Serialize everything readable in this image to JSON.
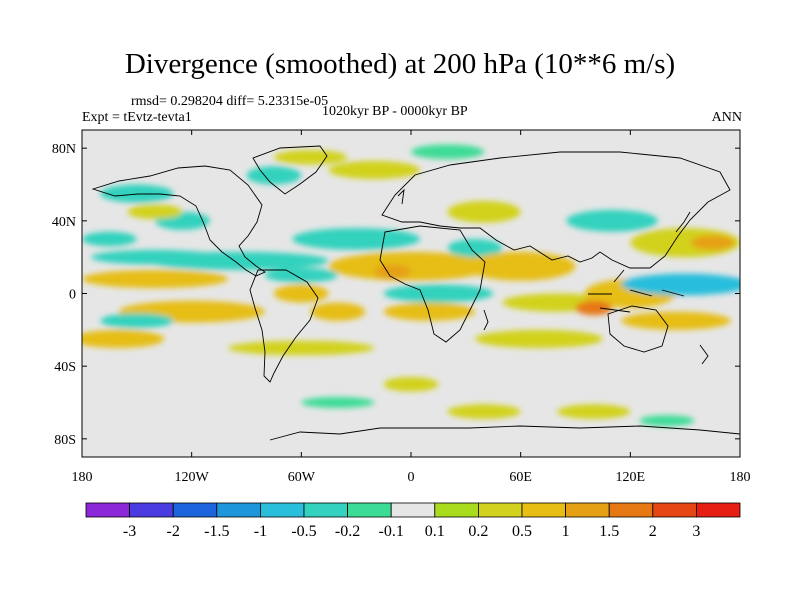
{
  "header": {
    "title": "Divergence (smoothed) at 200 hPa (10**6 m/s)",
    "rmsd_line": "rmsd= 0.298204  diff= 5.23315e-05",
    "experiment": "Expt = tEvtz-tevta1",
    "period": "1020kyr BP - 0000kyr BP",
    "season": "ANN"
  },
  "axes": {
    "lat_ticks": [
      {
        "value": 80,
        "label": "80N"
      },
      {
        "value": 40,
        "label": "40N"
      },
      {
        "value": 0,
        "label": "0"
      },
      {
        "value": -40,
        "label": "40S"
      },
      {
        "value": -80,
        "label": "80S"
      }
    ],
    "lon_ticks": [
      {
        "value": -180,
        "label": "180"
      },
      {
        "value": -120,
        "label": "120W"
      },
      {
        "value": -60,
        "label": "60W"
      },
      {
        "value": 0,
        "label": "0"
      },
      {
        "value": 60,
        "label": "60E"
      },
      {
        "value": 120,
        "label": "120E"
      },
      {
        "value": 180,
        "label": "180"
      }
    ],
    "lon_range": [
      -180,
      180
    ],
    "lat_range": [
      -90,
      90
    ]
  },
  "colorbar": {
    "colors": [
      "#8c28d8",
      "#4a3ce0",
      "#1e64dc",
      "#1e96dc",
      "#28bedc",
      "#32d2be",
      "#3cdc96",
      "#e6e6e6",
      "#aadc1e",
      "#d2d21e",
      "#e6be14",
      "#e6a014",
      "#e67814",
      "#e64614",
      "#e61e14"
    ],
    "labels": [
      "-3",
      "-2",
      "-1.5",
      "-1",
      "-0.5",
      "-0.2",
      "-0.1",
      "0.1",
      "0.2",
      "0.5",
      "1",
      "1.5",
      "2",
      "3"
    ]
  },
  "chart_data": {
    "type": "heatmap",
    "title": "Divergence (smoothed) at 200 hPa (10**6 m/s)",
    "units": "10**6 m/s",
    "xlabel": "",
    "ylabel": "",
    "xlim": [
      -180,
      180
    ],
    "ylim": [
      -90,
      90
    ],
    "levels": [
      -3,
      -2,
      -1.5,
      -1,
      -0.5,
      -0.2,
      -0.1,
      0.1,
      0.2,
      0.5,
      1,
      1.5,
      2,
      3
    ],
    "grid": false,
    "features": [
      {
        "lon": -140,
        "lat": 8,
        "rx": 40,
        "ry": 5,
        "value": 0.7
      },
      {
        "lon": -120,
        "lat": -10,
        "rx": 40,
        "ry": 6,
        "value": 0.6
      },
      {
        "lon": -160,
        "lat": -25,
        "rx": 25,
        "ry": 5,
        "value": 0.6
      },
      {
        "lon": -95,
        "lat": 18,
        "rx": 50,
        "ry": 5,
        "value": -0.5
      },
      {
        "lon": -140,
        "lat": 20,
        "rx": 35,
        "ry": 4,
        "value": -0.4
      },
      {
        "lon": -165,
        "lat": 30,
        "rx": 15,
        "ry": 4,
        "value": -0.3
      },
      {
        "lon": -125,
        "lat": 40,
        "rx": 15,
        "ry": 5,
        "value": -0.3
      },
      {
        "lon": -150,
        "lat": -15,
        "rx": 20,
        "ry": 4,
        "value": -0.3
      },
      {
        "lon": -60,
        "lat": 0,
        "rx": 15,
        "ry": 5,
        "value": 0.8
      },
      {
        "lon": -40,
        "lat": -10,
        "rx": 15,
        "ry": 5,
        "value": 0.5
      },
      {
        "lon": -60,
        "lat": -30,
        "rx": 40,
        "ry": 4,
        "value": 0.4
      },
      {
        "lon": -30,
        "lat": 30,
        "rx": 35,
        "ry": 6,
        "value": -0.4
      },
      {
        "lon": -60,
        "lat": 10,
        "rx": 20,
        "ry": 4,
        "value": -0.3
      },
      {
        "lon": 0,
        "lat": 15,
        "rx": 45,
        "ry": 8,
        "value": 0.6
      },
      {
        "lon": -10,
        "lat": 12,
        "rx": 10,
        "ry": 4,
        "value": 1.2
      },
      {
        "lon": 15,
        "lat": 0,
        "rx": 30,
        "ry": 5,
        "value": -0.4
      },
      {
        "lon": 10,
        "lat": -10,
        "rx": 25,
        "ry": 5,
        "value": 0.5
      },
      {
        "lon": 35,
        "lat": 25,
        "rx": 15,
        "ry": 5,
        "value": -0.3
      },
      {
        "lon": 60,
        "lat": 15,
        "rx": 30,
        "ry": 8,
        "value": 0.5
      },
      {
        "lon": 80,
        "lat": -5,
        "rx": 30,
        "ry": 5,
        "value": 0.4
      },
      {
        "lon": 70,
        "lat": -25,
        "rx": 35,
        "ry": 5,
        "value": 0.3
      },
      {
        "lon": 120,
        "lat": 0,
        "rx": 25,
        "ry": 8,
        "value": 0.9
      },
      {
        "lon": 100,
        "lat": -8,
        "rx": 10,
        "ry": 4,
        "value": 1.5
      },
      {
        "lon": 150,
        "lat": 5,
        "rx": 35,
        "ry": 6,
        "value": -0.6
      },
      {
        "lon": 145,
        "lat": -15,
        "rx": 30,
        "ry": 5,
        "value": 0.6
      },
      {
        "lon": 150,
        "lat": 28,
        "rx": 30,
        "ry": 8,
        "value": 0.4
      },
      {
        "lon": 165,
        "lat": 28,
        "rx": 12,
        "ry": 4,
        "value": 1.0
      },
      {
        "lon": 110,
        "lat": 40,
        "rx": 25,
        "ry": 6,
        "value": -0.3
      },
      {
        "lon": 40,
        "lat": 45,
        "rx": 20,
        "ry": 6,
        "value": 0.3
      },
      {
        "lon": -20,
        "lat": 68,
        "rx": 25,
        "ry": 5,
        "value": 0.3
      },
      {
        "lon": -55,
        "lat": 75,
        "rx": 20,
        "ry": 4,
        "value": 0.4
      },
      {
        "lon": -75,
        "lat": 65,
        "rx": 15,
        "ry": 5,
        "value": -0.3
      },
      {
        "lon": -150,
        "lat": 55,
        "rx": 20,
        "ry": 5,
        "value": -0.3
      },
      {
        "lon": -140,
        "lat": 45,
        "rx": 15,
        "ry": 4,
        "value": 0.3
      },
      {
        "lon": 20,
        "lat": 78,
        "rx": 20,
        "ry": 4,
        "value": -0.2
      },
      {
        "lon": 0,
        "lat": -50,
        "rx": 15,
        "ry": 4,
        "value": 0.3
      },
      {
        "lon": -40,
        "lat": -60,
        "rx": 20,
        "ry": 3,
        "value": -0.2
      },
      {
        "lon": 40,
        "lat": -65,
        "rx": 20,
        "ry": 4,
        "value": 0.3
      },
      {
        "lon": 100,
        "lat": -65,
        "rx": 20,
        "ry": 4,
        "value": 0.3
      },
      {
        "lon": 140,
        "lat": -70,
        "rx": 15,
        "ry": 3,
        "value": -0.2
      }
    ]
  }
}
